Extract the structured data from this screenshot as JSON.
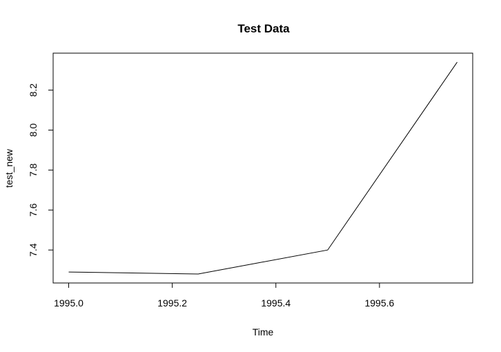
{
  "chart_data": {
    "type": "line",
    "title": "Test Data",
    "xlabel": "Time",
    "ylabel": "test_new",
    "xlim": [
      1994.97,
      1995.78
    ],
    "ylim": [
      7.235,
      8.385
    ],
    "x_ticks": [
      1995.0,
      1995.2,
      1995.4,
      1995.6
    ],
    "x_tick_labels": [
      "1995.0",
      "1995.2",
      "1995.4",
      "1995.6"
    ],
    "y_ticks": [
      7.4,
      7.6,
      7.8,
      8.0,
      8.2
    ],
    "y_tick_labels": [
      "7.4",
      "7.6",
      "7.8",
      "8.0",
      "8.2"
    ],
    "grid": false,
    "series": [
      {
        "x": [
          1995.0,
          1995.25,
          1995.5,
          1995.75
        ],
        "y": [
          7.29,
          7.28,
          7.4,
          8.34
        ]
      }
    ],
    "line_color": "#000000"
  }
}
